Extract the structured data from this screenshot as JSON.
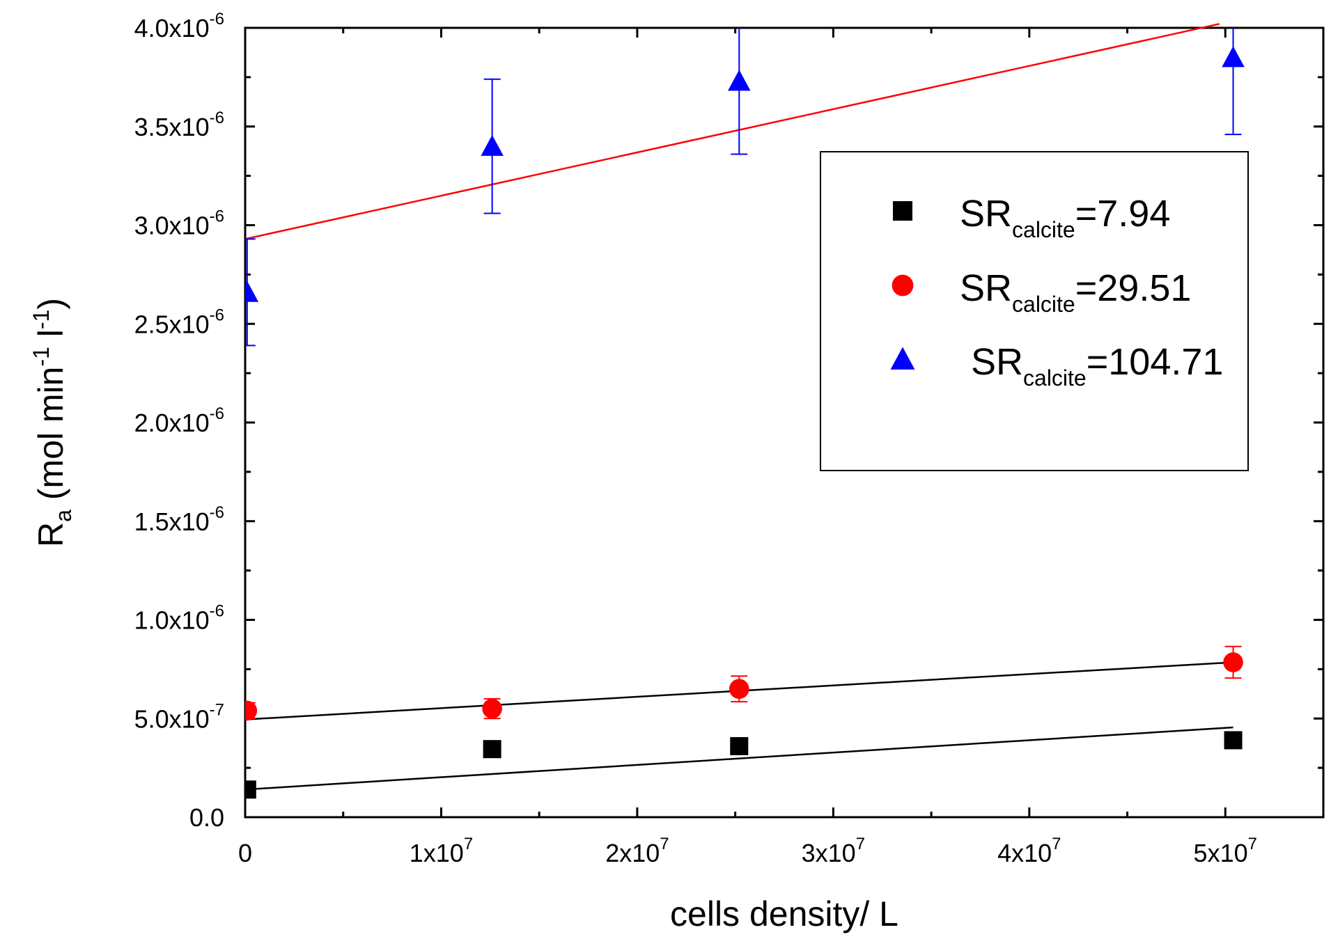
{
  "chart_data": {
    "type": "scatter",
    "title": "",
    "xlabel": "cells density/ L",
    "ylabel": {
      "base": "R",
      "sub": "a",
      "text_1": " (mol min",
      "sup_1": "-1",
      "text_2": " l",
      "sup_2": "-1",
      "text_3": ")"
    },
    "xlim": [
      0,
      55000000
    ],
    "ylim": [
      0,
      4e-06
    ],
    "x_ticks": [
      {
        "value": 0,
        "mant": "0",
        "exp": ""
      },
      {
        "value": 10000000,
        "mant": "1x10",
        "exp": "7"
      },
      {
        "value": 20000000,
        "mant": "2x10",
        "exp": "7"
      },
      {
        "value": 30000000,
        "mant": "3x10",
        "exp": "7"
      },
      {
        "value": 40000000,
        "mant": "4x10",
        "exp": "7"
      },
      {
        "value": 50000000,
        "mant": "5x10",
        "exp": "7"
      }
    ],
    "y_ticks": [
      {
        "value": 0,
        "mant": "0.0",
        "exp": ""
      },
      {
        "value": 5e-07,
        "mant": "5.0x10",
        "exp": "-7"
      },
      {
        "value": 1e-06,
        "mant": "1.0x10",
        "exp": "-6"
      },
      {
        "value": 1.5e-06,
        "mant": "1.5x10",
        "exp": "-6"
      },
      {
        "value": 2e-06,
        "mant": "2.0x10",
        "exp": "-6"
      },
      {
        "value": 2.5e-06,
        "mant": "2.5x10",
        "exp": "-6"
      },
      {
        "value": 3e-06,
        "mant": "3.0x10",
        "exp": "-6"
      },
      {
        "value": 3.5e-06,
        "mant": "3.5x10",
        "exp": "-6"
      },
      {
        "value": 4e-06,
        "mant": "4.0x10",
        "exp": "-6"
      }
    ],
    "series": [
      {
        "name": "SR_calcite=7.94",
        "legend": {
          "base": "SR",
          "sub": "calcite",
          "value": "=7.94"
        },
        "marker": "square",
        "color": "#000000",
        "points": [
          {
            "x": 100000,
            "y": 1.4e-07,
            "err": 0
          },
          {
            "x": 12600000,
            "y": 3.45e-07,
            "err": 0
          },
          {
            "x": 25200000,
            "y": 3.6e-07,
            "err": 0
          },
          {
            "x": 50400000,
            "y": 3.9e-07,
            "err": 0
          }
        ],
        "fit": {
          "color": "#000000",
          "x": [
            0,
            50400000
          ],
          "y": [
            1.4e-07,
            4.55e-07
          ]
        }
      },
      {
        "name": "SR_calcite=29.51",
        "legend": {
          "base": "SR",
          "sub": "calcite",
          "value": "=29.51"
        },
        "marker": "circle",
        "color": "#ff0000",
        "points": [
          {
            "x": 100000,
            "y": 5.4e-07,
            "err": 4e-08
          },
          {
            "x": 12600000,
            "y": 5.5e-07,
            "err": 5e-08
          },
          {
            "x": 25200000,
            "y": 6.5e-07,
            "err": 6.5e-08
          },
          {
            "x": 50400000,
            "y": 7.85e-07,
            "err": 8e-08
          }
        ],
        "fit": {
          "color": "#000000",
          "x": [
            0,
            50400000
          ],
          "y": [
            4.95e-07,
            7.85e-07
          ]
        }
      },
      {
        "name": "SR_calcite=104.71",
        "legend": {
          "base": "SR",
          "sub": "calcite",
          "value": "=104.71"
        },
        "marker": "triangle",
        "color": "#0000ff",
        "points": [
          {
            "x": 100000,
            "y": 2.66e-06,
            "err": 2.7e-07
          },
          {
            "x": 12600000,
            "y": 3.4e-06,
            "err": 3.4e-07
          },
          {
            "x": 25200000,
            "y": 3.73e-06,
            "err": 3.7e-07
          },
          {
            "x": 50400000,
            "y": 3.85e-06,
            "err": 3.9e-07
          }
        ],
        "fit": {
          "color": "#ff0000",
          "x": [
            0,
            49700000
          ],
          "y": [
            2.93e-06,
            4.02e-06
          ]
        }
      }
    ],
    "legend_position": "upper-right"
  }
}
